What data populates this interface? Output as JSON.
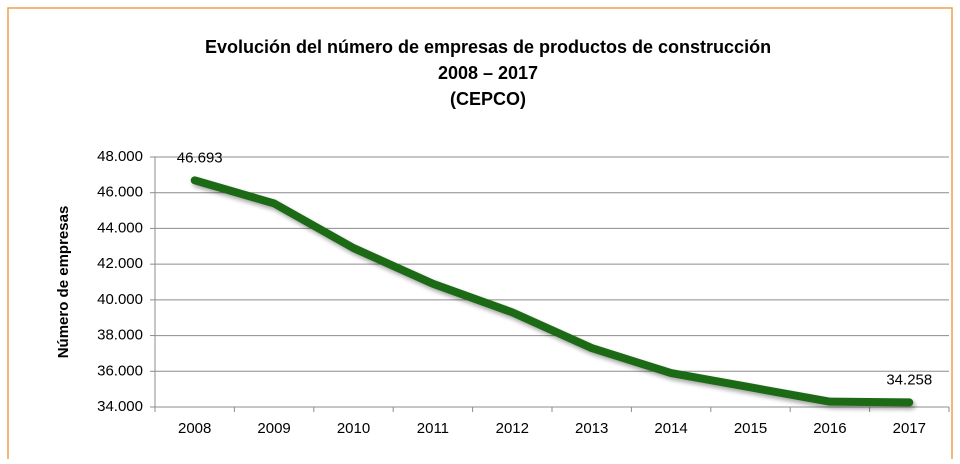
{
  "chart_data": {
    "type": "line",
    "title": [
      "Evolución del número de empresas de productos de construcción",
      "2008 – 2017",
      "(CEPCO)"
    ],
    "ylabel": "Número de empresas",
    "categories": [
      "2008",
      "2009",
      "2010",
      "2011",
      "2012",
      "2013",
      "2014",
      "2015",
      "2016",
      "2017"
    ],
    "series": [
      {
        "name": "Número de empresas",
        "color": "#1f6a12",
        "values": [
          46693,
          45400,
          42900,
          40900,
          39300,
          37300,
          35900,
          35100,
          34300,
          34258
        ],
        "value_labels": [
          "46.693",
          null,
          null,
          null,
          null,
          null,
          null,
          null,
          null,
          "34.258"
        ]
      }
    ],
    "ylim": [
      34000,
      48000
    ],
    "yticks": [
      {
        "value": 34000,
        "label": "34.000"
      },
      {
        "value": 36000,
        "label": "36.000"
      },
      {
        "value": 38000,
        "label": "38.000"
      },
      {
        "value": 40000,
        "label": "40.000"
      },
      {
        "value": 42000,
        "label": "42.000"
      },
      {
        "value": 44000,
        "label": "44.000"
      },
      {
        "value": 46000,
        "label": "46.000"
      },
      {
        "value": 48000,
        "label": "48.000"
      }
    ],
    "grid": true
  }
}
